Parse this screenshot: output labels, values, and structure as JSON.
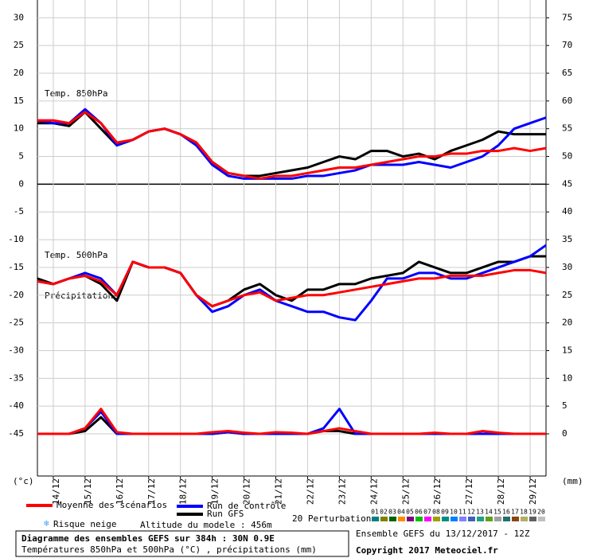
{
  "chart_data": {
    "type": "line",
    "panel_labels": {
      "t850": "Temp. 850hPa",
      "t500": "Temp. 500hPa",
      "precip": "Précipitations"
    },
    "y_unit_label": "(°c)",
    "y2_unit_label": "(mm)",
    "xlim": [
      0,
      384
    ],
    "xticks": [
      {
        "value": 12,
        "label": "14/12"
      },
      {
        "value": 36,
        "label": "15/12"
      },
      {
        "value": 60,
        "label": "16/12"
      },
      {
        "value": 84,
        "label": "17/12"
      },
      {
        "value": 108,
        "label": "18/12"
      },
      {
        "value": 132,
        "label": "19/12"
      },
      {
        "value": 156,
        "label": "20/12"
      },
      {
        "value": 180,
        "label": "21/12"
      },
      {
        "value": 204,
        "label": "22/12"
      },
      {
        "value": 228,
        "label": "23/12"
      },
      {
        "value": 252,
        "label": "24/12"
      },
      {
        "value": 276,
        "label": "25/12"
      },
      {
        "value": 300,
        "label": "26/12"
      },
      {
        "value": 324,
        "label": "27/12"
      },
      {
        "value": 348,
        "label": "28/12"
      },
      {
        "value": 372,
        "label": "29/12"
      }
    ],
    "ylim": [
      -52.6,
      33.2
    ],
    "yticks": [
      30,
      25,
      20,
      15,
      10,
      5,
      0,
      -5,
      -10,
      -15,
      -20,
      -25,
      -30,
      -35,
      -40,
      -45
    ],
    "y2lim": [
      -7.6,
      78.2
    ],
    "y2ticks": [
      75,
      70,
      65,
      60,
      55,
      50,
      45,
      40,
      35,
      30,
      25,
      20,
      15,
      10,
      5,
      0
    ],
    "grid": true,
    "x": [
      0,
      12,
      24,
      36,
      48,
      60,
      72,
      84,
      96,
      108,
      120,
      132,
      144,
      156,
      168,
      180,
      192,
      204,
      216,
      228,
      240,
      252,
      264,
      276,
      288,
      300,
      312,
      324,
      336,
      348,
      360,
      372,
      384
    ],
    "series": [
      {
        "name": "Moyenne des scénarios",
        "color": "#ff0000",
        "width": 3,
        "t850": [
          11.5,
          11.5,
          11,
          13,
          11,
          7.5,
          8,
          9.5,
          10,
          9,
          7.5,
          4,
          2,
          1.5,
          1,
          1.5,
          1.5,
          2,
          2.5,
          3,
          3,
          3.5,
          4,
          4.5,
          5,
          5,
          5.5,
          5.5,
          6,
          6,
          6.5,
          6,
          6.5
        ],
        "t500": [
          -17.5,
          -18,
          -17,
          -16.5,
          -17.5,
          -20,
          -14,
          -15,
          -15,
          -16,
          -20,
          -22,
          -21,
          -20,
          -19.5,
          -21,
          -20.5,
          -20,
          -20,
          -19.5,
          -19,
          -18.5,
          -18,
          -17.5,
          -17,
          -17,
          -16.5,
          -16.5,
          -16.5,
          -16,
          -15.5,
          -15.5,
          -16
        ],
        "precip": [
          0,
          0,
          0,
          1,
          4.5,
          0.3,
          0,
          0,
          0,
          0,
          0,
          0.3,
          0.5,
          0.2,
          0,
          0.3,
          0.2,
          0,
          0.5,
          1,
          0.5,
          0,
          0,
          0,
          0,
          0.2,
          0,
          0,
          0.5,
          0.2,
          0,
          0,
          0
        ]
      },
      {
        "name": "Run de contrôle",
        "color": "#0000ff",
        "width": 3,
        "t850": [
          11.5,
          11,
          11,
          13.5,
          11,
          7,
          8,
          9.5,
          10,
          9,
          7,
          3.5,
          1.5,
          1,
          1,
          1,
          1,
          1.5,
          1.5,
          2,
          2.5,
          3.5,
          3.5,
          3.5,
          4,
          3.5,
          3,
          4,
          5,
          7,
          10,
          11,
          12
        ],
        "t500": [
          -17.5,
          -18,
          -17,
          -16,
          -17,
          -20,
          -14,
          -15,
          -15,
          -16,
          -20,
          -23,
          -22,
          -20,
          -19,
          -21,
          -22,
          -23,
          -23,
          -24,
          -24.5,
          -21,
          -17,
          -17,
          -16,
          -16,
          -17,
          -17,
          -16,
          -15,
          -14,
          -13,
          -11
        ],
        "precip": [
          0,
          0,
          0,
          1,
          4,
          0,
          0,
          0,
          0,
          0,
          0,
          0,
          0.3,
          0,
          0,
          0,
          0,
          0,
          1,
          4.5,
          0,
          0,
          0,
          0,
          0,
          0,
          0,
          0,
          0,
          0,
          0,
          0,
          0
        ]
      },
      {
        "name": "Run GFS",
        "color": "#000000",
        "width": 3,
        "t850": [
          11,
          11,
          10.5,
          13,
          10,
          7,
          8,
          9.5,
          10,
          9,
          7.5,
          4,
          2,
          1.5,
          1.5,
          2,
          2.5,
          3,
          4,
          5,
          4.5,
          6,
          6,
          5,
          5.5,
          4.5,
          6,
          7,
          8,
          9.5,
          9,
          9,
          9
        ],
        "t500": [
          -17,
          -18,
          -17,
          -16.5,
          -18,
          -21,
          -14,
          -15,
          -15,
          -16,
          -20,
          -22,
          -21,
          -19,
          -18,
          -20,
          -21,
          -19,
          -19,
          -18,
          -18,
          -17,
          -16.5,
          -16,
          -14,
          -15,
          -16,
          -16,
          -15,
          -14,
          -14,
          -13,
          -13
        ],
        "precip": [
          0,
          0,
          0,
          0.5,
          3,
          0,
          0,
          0,
          0,
          0,
          0,
          0,
          0.3,
          0,
          0,
          0,
          0,
          0,
          0.5,
          0.5,
          0,
          0,
          0,
          0,
          0,
          0,
          0,
          0,
          0,
          0,
          0,
          0,
          0
        ]
      }
    ],
    "snow_label": "Risque neige",
    "altitude": "Altitude du modele : 456m",
    "perturbations": {
      "label": "20 Perturbations",
      "members": [
        {
          "label": "01",
          "color": "#008080"
        },
        {
          "label": "02",
          "color": "#808000"
        },
        {
          "label": "03",
          "color": "#006400"
        },
        {
          "label": "04",
          "color": "#ff8c00"
        },
        {
          "label": "05",
          "color": "#800080"
        },
        {
          "label": "06",
          "color": "#00c000"
        },
        {
          "label": "07",
          "color": "#ff00ff"
        },
        {
          "label": "08",
          "color": "#a0a000"
        },
        {
          "label": "09",
          "color": "#008b8b"
        },
        {
          "label": "10",
          "color": "#0080ff"
        },
        {
          "label": "11",
          "color": "#8080ff"
        },
        {
          "label": "12",
          "color": "#4060c0"
        },
        {
          "label": "13",
          "color": "#20a080"
        },
        {
          "label": "14",
          "color": "#60a020"
        },
        {
          "label": "15",
          "color": "#a0a0a0"
        },
        {
          "label": "16",
          "color": "#207070"
        },
        {
          "label": "17",
          "color": "#8b4513"
        },
        {
          "label": "18",
          "color": "#b0b060"
        },
        {
          "label": "19",
          "color": "#606060"
        },
        {
          "label": "20",
          "color": "#c0c0c0"
        }
      ]
    },
    "info": {
      "title": "Diagramme des ensembles GEFS sur 384h : 30N 0.9E",
      "subtitle": "Températures 850hPa et 500hPa (°C) , précipitations (mm)",
      "run": "Ensemble GEFS du 13/12/2017 - 12Z",
      "copyright": "Copyright 2017 Meteociel.fr"
    }
  }
}
